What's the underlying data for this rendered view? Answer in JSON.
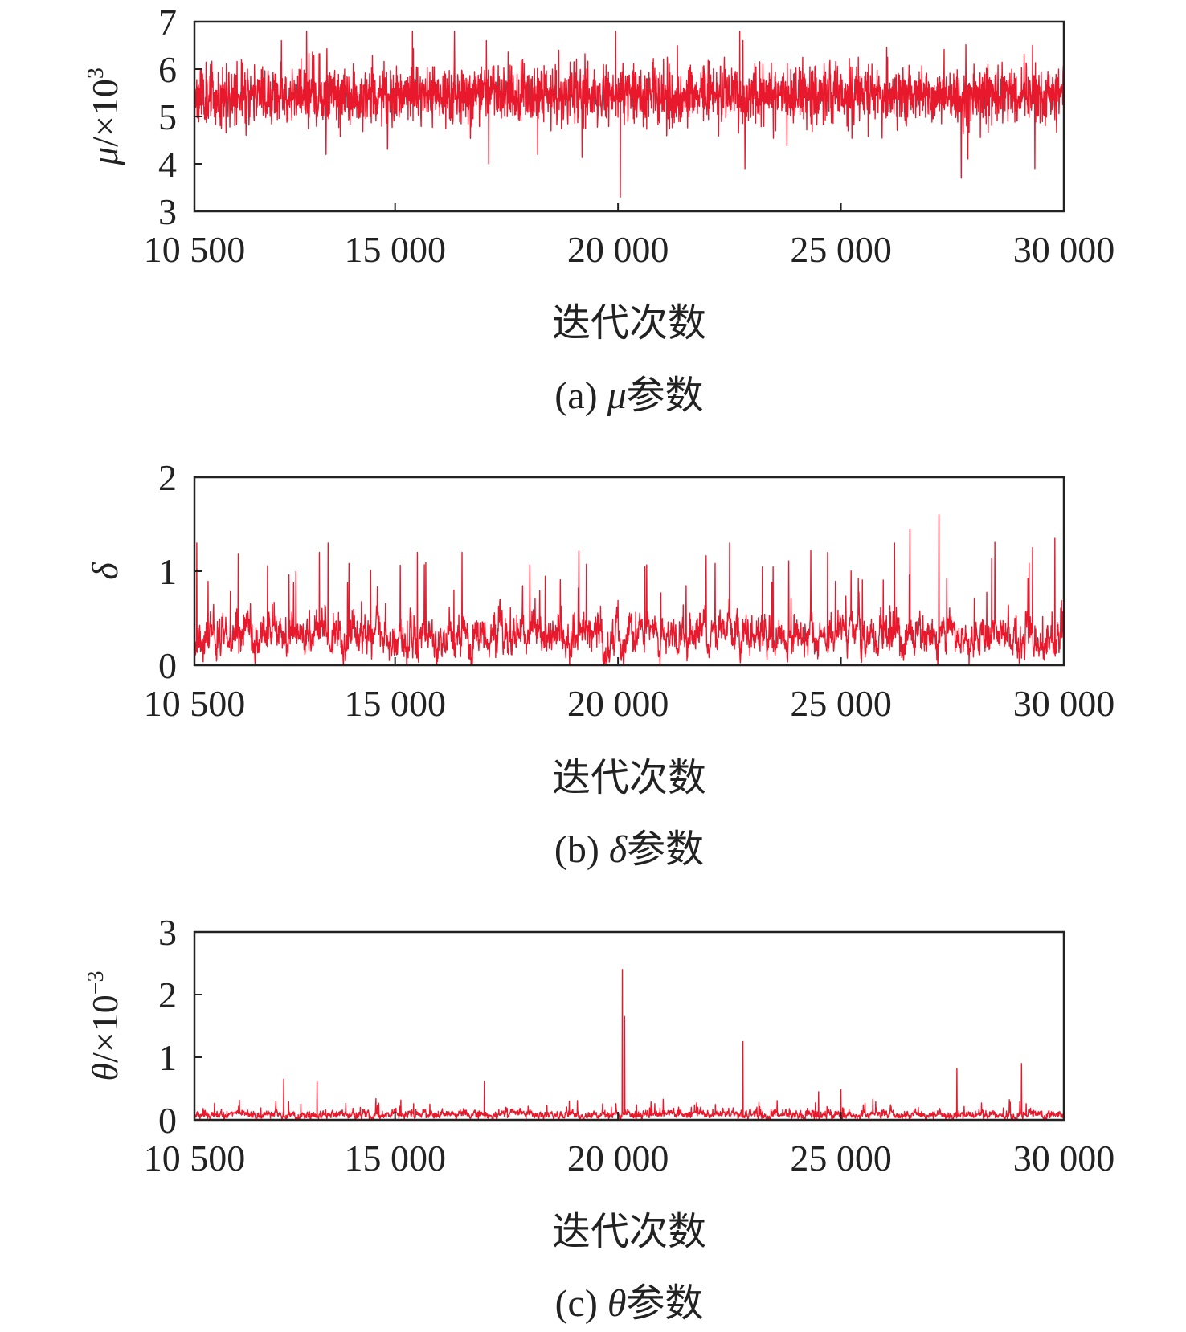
{
  "figure": {
    "background": "#ffffff",
    "line_color": "#e8192c",
    "axis_color": "#222222"
  },
  "chart_data": [
    {
      "id": "a",
      "type": "line",
      "title": "",
      "caption_prefix": "(a) ",
      "caption_symbol": "μ",
      "caption_suffix": "参数",
      "xlabel": "迭代次数",
      "ylabel_symbol": "μ",
      "ylabel_unit": "/×10",
      "ylabel_exp": "3",
      "xlim": [
        10500,
        30000
      ],
      "ylim": [
        3,
        7
      ],
      "xticks": [
        10500,
        15000,
        20000,
        25000,
        30000
      ],
      "xtick_labels": [
        "10 500",
        "15 000",
        "20 000",
        "25 000",
        "30 000"
      ],
      "yticks": [
        3,
        4,
        5,
        6,
        7
      ],
      "ytick_labels": [
        "3",
        "4",
        "5",
        "6",
        "7"
      ],
      "grid": false,
      "series": [
        {
          "color": "#e8192c",
          "trace": {
            "kind": "stationary",
            "n": 3000,
            "seed": 11,
            "mean": 5.45,
            "sd": 0.3,
            "spike_rate": 0.012,
            "spike_scale": 0.9,
            "min": 3.2,
            "max": 6.8
          },
          "peaks": [
            [
              12450,
              6.6
            ],
            [
              13450,
              4.2
            ],
            [
              17100,
              4.0
            ],
            [
              18200,
              4.2
            ],
            [
              17050,
              6.6
            ],
            [
              19950,
              6.8
            ],
            [
              20050,
              3.3
            ],
            [
              22800,
              6.6
            ],
            [
              22850,
              3.9
            ],
            [
              27700,
              3.7
            ],
            [
              29300,
              6.5
            ],
            [
              29350,
              3.9
            ]
          ]
        }
      ]
    },
    {
      "id": "b",
      "type": "line",
      "title": "",
      "caption_prefix": "(b) ",
      "caption_symbol": "δ",
      "caption_suffix": "参数",
      "xlabel": "迭代次数",
      "ylabel_symbol": "δ",
      "ylabel_unit": "",
      "ylabel_exp": "",
      "xlim": [
        10500,
        30000
      ],
      "ylim": [
        0,
        2
      ],
      "xticks": [
        10500,
        15000,
        20000,
        25000,
        30000
      ],
      "xtick_labels": [
        "10 500",
        "15 000",
        "20 000",
        "25 000",
        "30 000"
      ],
      "yticks": [
        0,
        1,
        2
      ],
      "ytick_labels": [
        "0",
        "1",
        "2"
      ],
      "grid": false,
      "series": [
        {
          "color": "#e8192c",
          "trace": {
            "kind": "positive",
            "n": 3000,
            "seed": 23,
            "mean": 0.3,
            "sd": 0.16,
            "spike_rate": 0.02,
            "spike_scale": 0.6,
            "min": 0.0,
            "max": 1.6
          },
          "peaks": [
            [
              10550,
              1.3
            ],
            [
              13300,
              1.2
            ],
            [
              13500,
              1.3
            ],
            [
              15500,
              1.2
            ],
            [
              16500,
              1.2
            ],
            [
              22500,
              1.3
            ],
            [
              24700,
              1.2
            ],
            [
              26200,
              1.3
            ],
            [
              26550,
              1.45
            ],
            [
              27200,
              1.6
            ],
            [
              29300,
              1.25
            ],
            [
              29800,
              1.35
            ]
          ]
        }
      ]
    },
    {
      "id": "c",
      "type": "line",
      "title": "",
      "caption_prefix": "(c) ",
      "caption_symbol": "θ",
      "caption_suffix": "参数",
      "xlabel": "迭代次数",
      "ylabel_symbol": "θ",
      "ylabel_unit": "/×10",
      "ylabel_exp": "−3",
      "xlim": [
        10500,
        30000
      ],
      "ylim": [
        0,
        3
      ],
      "xticks": [
        10500,
        15000,
        20000,
        25000,
        30000
      ],
      "xtick_labels": [
        "10 500",
        "15 000",
        "20 000",
        "25 000",
        "30 000"
      ],
      "yticks": [
        0,
        1,
        2,
        3
      ],
      "ytick_labels": [
        "0",
        "1",
        "2",
        "3"
      ],
      "grid": false,
      "series": [
        {
          "color": "#e8192c",
          "trace": {
            "kind": "positive",
            "n": 3000,
            "seed": 37,
            "mean": 0.08,
            "sd": 0.05,
            "spike_rate": 0.02,
            "spike_scale": 0.15,
            "min": 0.0,
            "max": 2.4
          },
          "peaks": [
            [
              12500,
              0.65
            ],
            [
              13250,
              0.62
            ],
            [
              17000,
              0.62
            ],
            [
              20100,
              2.4
            ],
            [
              20150,
              1.65
            ],
            [
              22800,
              1.25
            ],
            [
              27600,
              0.82
            ],
            [
              29050,
              0.9
            ],
            [
              24500,
              0.45
            ],
            [
              25000,
              0.48
            ]
          ]
        }
      ]
    }
  ]
}
